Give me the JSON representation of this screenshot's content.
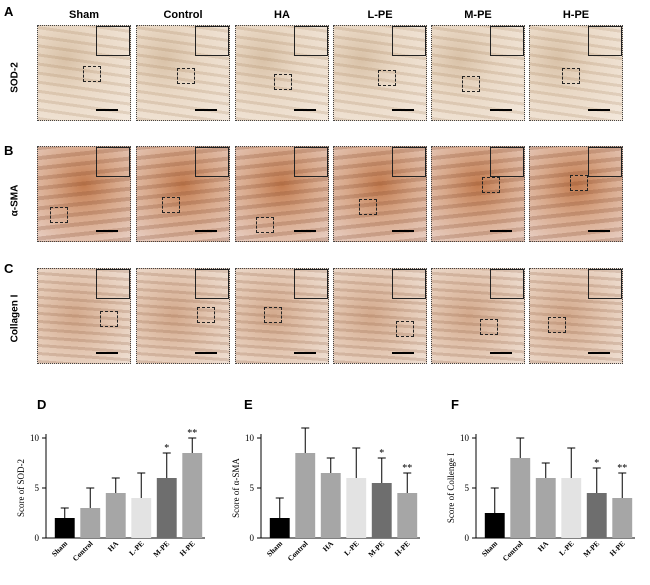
{
  "panels": {
    "letters": {
      "a": "A",
      "b": "B",
      "c": "C",
      "d": "D",
      "e": "E",
      "f": "F"
    },
    "columns": [
      "Sham",
      "Control",
      "HA",
      "L-PE",
      "M-PE",
      "H-PE"
    ],
    "rows": [
      "SOD-2",
      "α-SMA",
      "Collagen I"
    ]
  },
  "chart_data": [
    {
      "type": "bar",
      "ylabel": "Score of SOD-2",
      "categories": [
        "Sham",
        "Control",
        "HA",
        "L-PE",
        "M-PE",
        "H-PE"
      ],
      "values": [
        2.0,
        3.0,
        4.5,
        4.0,
        6.0,
        8.5
      ],
      "errors": [
        1.0,
        2.0,
        1.5,
        2.5,
        2.5,
        1.5
      ],
      "annotations": [
        "",
        "",
        "",
        "",
        "*",
        "**"
      ],
      "ylim": [
        0,
        10
      ],
      "yticks": [
        "0",
        "5",
        "10"
      ],
      "colors": [
        "#000000",
        "#a6a6a6",
        "#a6a6a6",
        "#e3e3e3",
        "#6e6e6e",
        "#a6a6a6"
      ]
    },
    {
      "type": "bar",
      "ylabel": "Score of α-SMA",
      "categories": [
        "Sham",
        "Control",
        "HA",
        "L-PE",
        "M-PE",
        "H-PE"
      ],
      "values": [
        2.0,
        8.5,
        6.5,
        6.0,
        5.5,
        4.5
      ],
      "errors": [
        2.0,
        2.5,
        1.5,
        3.0,
        2.5,
        2.0
      ],
      "annotations": [
        "",
        "",
        "",
        "",
        "*",
        "**"
      ],
      "ylim": [
        0,
        10
      ],
      "yticks": [
        "0",
        "5",
        "10"
      ],
      "colors": [
        "#000000",
        "#a6a6a6",
        "#a6a6a6",
        "#e3e3e3",
        "#6e6e6e",
        "#a6a6a6"
      ]
    },
    {
      "type": "bar",
      "ylabel": "Score of Collenge I",
      "categories": [
        "Sham",
        "Control",
        "HA",
        "L-PE",
        "M-PE",
        "H-PE"
      ],
      "values": [
        2.5,
        8.0,
        6.0,
        6.0,
        4.5,
        4.0
      ],
      "errors": [
        2.5,
        2.0,
        1.5,
        3.0,
        2.5,
        2.5
      ],
      "annotations": [
        "",
        "",
        "",
        "",
        "*",
        "**"
      ],
      "ylim": [
        0,
        10
      ],
      "yticks": [
        "0",
        "5",
        "10"
      ],
      "colors": [
        "#000000",
        "#a6a6a6",
        "#a6a6a6",
        "#e3e3e3",
        "#6e6e6e",
        "#a6a6a6"
      ]
    }
  ]
}
